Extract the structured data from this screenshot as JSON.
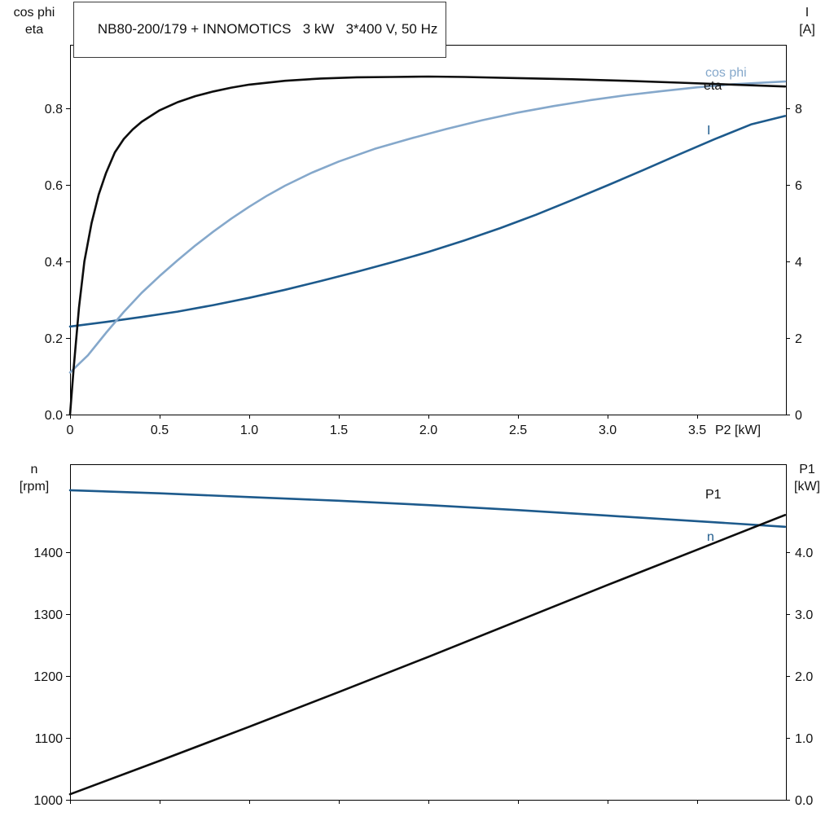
{
  "colors": {
    "black": "#0d0d0d",
    "dark_blue": "#1d5a8c",
    "light_blue": "#85a8cb",
    "axis": "#000000",
    "background": "#ffffff"
  },
  "chart_data": [
    {
      "id": "top",
      "type": "line",
      "title": "NB80-200/179 + INNOMOTICS   3 kW   3*400 V, 50 Hz",
      "x_axis": {
        "label": "P2 [kW]",
        "range": [
          0,
          3.995
        ],
        "ticks": [
          0,
          0.5,
          1.0,
          1.5,
          2.0,
          2.5,
          3.0,
          3.5
        ],
        "tick_labels": [
          "0",
          "0.5",
          "1.0",
          "1.5",
          "2.0",
          "2.5",
          "3.0",
          "3.5"
        ]
      },
      "y_left": {
        "label_lines": [
          "cos phi",
          "eta"
        ],
        "range": [
          0,
          0.966
        ],
        "ticks": [
          0.0,
          0.2,
          0.4,
          0.6,
          0.8
        ],
        "tick_labels": [
          "0.0",
          "0.2",
          "0.4",
          "0.6",
          "0.8"
        ]
      },
      "y_right": {
        "label_lines": [
          "I",
          "[A]"
        ],
        "range": [
          0,
          9.66
        ],
        "ticks": [
          0,
          2,
          4,
          6,
          8
        ],
        "tick_labels": [
          "0",
          "2",
          "4",
          "6",
          "8"
        ]
      },
      "grid": false,
      "series": [
        {
          "name": "I",
          "axis": "right",
          "color": "dark_blue",
          "points": [
            [
              0,
              2.3
            ],
            [
              0.2,
              2.42
            ],
            [
              0.4,
              2.55
            ],
            [
              0.6,
              2.69
            ],
            [
              0.8,
              2.86
            ],
            [
              1.0,
              3.05
            ],
            [
              1.2,
              3.26
            ],
            [
              1.4,
              3.49
            ],
            [
              1.6,
              3.73
            ],
            [
              1.8,
              3.98
            ],
            [
              2.0,
              4.25
            ],
            [
              2.2,
              4.55
            ],
            [
              2.4,
              4.87
            ],
            [
              2.6,
              5.22
            ],
            [
              2.8,
              5.6
            ],
            [
              3.0,
              5.99
            ],
            [
              3.2,
              6.39
            ],
            [
              3.4,
              6.8
            ],
            [
              3.6,
              7.2
            ],
            [
              3.8,
              7.58
            ],
            [
              3.99,
              7.8
            ]
          ]
        },
        {
          "name": "cos phi",
          "axis": "left",
          "color": "light_blue",
          "points": [
            [
              0,
              0.11
            ],
            [
              0.1,
              0.155
            ],
            [
              0.2,
              0.213
            ],
            [
              0.3,
              0.268
            ],
            [
              0.4,
              0.318
            ],
            [
              0.5,
              0.362
            ],
            [
              0.6,
              0.403
            ],
            [
              0.7,
              0.442
            ],
            [
              0.8,
              0.478
            ],
            [
              0.9,
              0.512
            ],
            [
              1.0,
              0.543
            ],
            [
              1.1,
              0.572
            ],
            [
              1.2,
              0.598
            ],
            [
              1.35,
              0.632
            ],
            [
              1.5,
              0.661
            ],
            [
              1.7,
              0.694
            ],
            [
              1.9,
              0.721
            ],
            [
              2.1,
              0.746
            ],
            [
              2.3,
              0.769
            ],
            [
              2.5,
              0.789
            ],
            [
              2.7,
              0.806
            ],
            [
              2.9,
              0.821
            ],
            [
              3.1,
              0.834
            ],
            [
              3.3,
              0.845
            ],
            [
              3.5,
              0.855
            ],
            [
              3.7,
              0.863
            ],
            [
              3.99,
              0.87
            ]
          ]
        },
        {
          "name": "eta",
          "axis": "left",
          "color": "black",
          "points": [
            [
              0,
              0
            ],
            [
              0.02,
              0.12
            ],
            [
              0.05,
              0.28
            ],
            [
              0.08,
              0.4
            ],
            [
              0.12,
              0.5
            ],
            [
              0.16,
              0.575
            ],
            [
              0.2,
              0.63
            ],
            [
              0.25,
              0.685
            ],
            [
              0.3,
              0.72
            ],
            [
              0.35,
              0.745
            ],
            [
              0.4,
              0.765
            ],
            [
              0.5,
              0.795
            ],
            [
              0.6,
              0.816
            ],
            [
              0.7,
              0.832
            ],
            [
              0.8,
              0.844
            ],
            [
              0.9,
              0.854
            ],
            [
              1.0,
              0.862
            ],
            [
              1.2,
              0.872
            ],
            [
              1.4,
              0.878
            ],
            [
              1.6,
              0.881
            ],
            [
              1.8,
              0.882
            ],
            [
              2.0,
              0.883
            ],
            [
              2.2,
              0.882
            ],
            [
              2.5,
              0.879
            ],
            [
              2.8,
              0.876
            ],
            [
              3.1,
              0.872
            ],
            [
              3.4,
              0.867
            ],
            [
              3.7,
              0.862
            ],
            [
              3.99,
              0.857
            ]
          ]
        }
      ]
    },
    {
      "id": "bottom",
      "type": "line",
      "title": "",
      "x_axis": {
        "label": "",
        "range": [
          0,
          3.995
        ],
        "ticks": [
          0,
          0.5,
          1.0,
          1.5,
          2.0,
          2.5,
          3.0,
          3.5
        ],
        "tick_labels": []
      },
      "y_left": {
        "label_lines": [
          "n",
          "[rpm]"
        ],
        "range": [
          1000,
          1542
        ],
        "ticks": [
          1000,
          1100,
          1200,
          1300,
          1400
        ],
        "tick_labels": [
          "1000",
          "1100",
          "1200",
          "1300",
          "1400"
        ]
      },
      "y_right": {
        "label_lines": [
          "P1",
          "[kW]"
        ],
        "range": [
          0,
          5.42
        ],
        "ticks": [
          0.0,
          1.0,
          2.0,
          3.0,
          4.0
        ],
        "tick_labels": [
          "0.0",
          "1.0",
          "2.0",
          "3.0",
          "4.0"
        ]
      },
      "grid": false,
      "series": [
        {
          "name": "n",
          "axis": "left",
          "color": "dark_blue",
          "points": [
            [
              0,
              1500
            ],
            [
              0.5,
              1495
            ],
            [
              1.0,
              1489
            ],
            [
              1.5,
              1483
            ],
            [
              2.0,
              1476
            ],
            [
              2.5,
              1468
            ],
            [
              3.0,
              1459
            ],
            [
              3.5,
              1450
            ],
            [
              3.99,
              1441
            ]
          ]
        },
        {
          "name": "P1",
          "axis": "right",
          "color": "black",
          "points": [
            [
              0,
              0.09
            ],
            [
              0.5,
              0.63
            ],
            [
              1.0,
              1.18
            ],
            [
              1.5,
              1.74
            ],
            [
              2.0,
              2.31
            ],
            [
              2.5,
              2.89
            ],
            [
              3.0,
              3.47
            ],
            [
              3.5,
              4.04
            ],
            [
              3.99,
              4.6
            ]
          ]
        }
      ]
    }
  ]
}
